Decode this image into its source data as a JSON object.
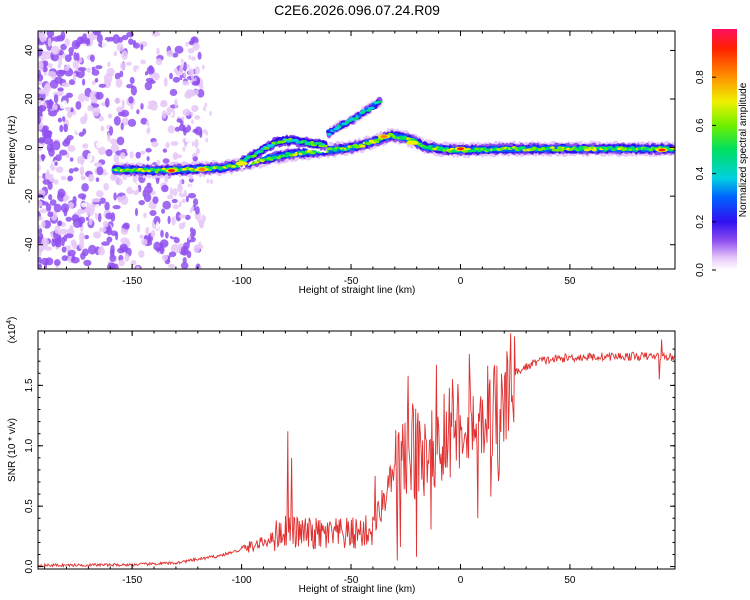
{
  "title": "C2E6.2026.096.07.24.R09",
  "chart_data": [
    {
      "type": "heatmap",
      "name": "spectrogram",
      "xlabel": "Height of straight line (km)",
      "ylabel": "Frequency (Hz)",
      "xlim": [
        -193,
        98
      ],
      "ylim": [
        -50,
        48
      ],
      "xticks": [
        -150,
        -100,
        -50,
        0,
        50
      ],
      "yticks": [
        -40,
        -20,
        0,
        20,
        40
      ],
      "colorbar": {
        "label": "Normalized spectral amplitude",
        "range": [
          0,
          1
        ],
        "ticks": [
          "0.0",
          "0.2",
          "0.4",
          "0.6",
          "0.8"
        ],
        "tick_values": [
          0,
          0.2,
          0.4,
          0.6,
          0.8
        ]
      },
      "ridges": [
        {
          "name": "main-carrier",
          "points": [
            [
              -158,
              -9
            ],
            [
              -140,
              -9.5
            ],
            [
              -125,
              -9
            ],
            [
              -110,
              -8.5
            ],
            [
              -100,
              -7
            ],
            [
              -90,
              -5
            ],
            [
              -80,
              -3
            ],
            [
              -70,
              -2
            ],
            [
              -60,
              -1
            ],
            [
              -50,
              0
            ],
            [
              -45,
              1
            ],
            [
              -38,
              3
            ],
            [
              -32,
              5
            ],
            [
              -25,
              4
            ],
            [
              -15,
              0
            ],
            [
              -5,
              -1
            ],
            [
              5,
              -1
            ],
            [
              20,
              -0.5
            ],
            [
              40,
              -0.5
            ],
            [
              60,
              -0.5
            ],
            [
              80,
              -0.5
            ],
            [
              97,
              -0.5
            ]
          ],
          "amplitude": 0.5
        },
        {
          "name": "upper-branch",
          "points": [
            [
              -100,
              -6
            ],
            [
              -92,
              -2
            ],
            [
              -85,
              2
            ],
            [
              -78,
              3
            ],
            [
              -70,
              2
            ],
            [
              -62,
              1
            ]
          ],
          "amplitude": 0.4
        },
        {
          "name": "rising-branch",
          "points": [
            [
              -60,
              6
            ],
            [
              -55,
              9
            ],
            [
              -50,
              11
            ],
            [
              -45,
              14
            ],
            [
              -40,
              17
            ],
            [
              -37,
              19
            ]
          ],
          "amplitude": 0.3
        }
      ],
      "peaks": [
        [
          -132,
          -9.5,
          0.95
        ],
        [
          -118,
          -9,
          0.85
        ],
        [
          -100,
          -6.5,
          0.8
        ],
        [
          -35,
          4.5,
          0.85
        ],
        [
          -22,
          2,
          0.8
        ],
        [
          0,
          -0.5,
          0.95
        ],
        [
          92,
          -1,
          0.95
        ]
      ]
    },
    {
      "type": "line",
      "name": "snr",
      "xlabel": "Height of straight line (km)",
      "ylabel": "SNR (10 * v/v)",
      "scale_label": "(x10",
      "scale_exponent": "4",
      "xlim": [
        -193,
        98
      ],
      "ylim": [
        -0.02,
        1.95
      ],
      "xticks": [
        -150,
        -100,
        -50,
        0,
        50
      ],
      "yticks": [
        0,
        0.5,
        1.0,
        1.5
      ],
      "ytick_labels": [
        "0.0",
        "0.5",
        "1.0",
        "1.5"
      ],
      "series_color": "#e03030",
      "envelope": [
        [
          -193,
          0.01
        ],
        [
          -150,
          0.015
        ],
        [
          -130,
          0.03
        ],
        [
          -120,
          0.06
        ],
        [
          -110,
          0.09
        ],
        [
          -100,
          0.14
        ],
        [
          -90,
          0.2
        ],
        [
          -80,
          0.3
        ],
        [
          -75,
          0.28
        ],
        [
          -70,
          0.27
        ],
        [
          -60,
          0.26
        ],
        [
          -50,
          0.27
        ],
        [
          -40,
          0.3
        ],
        [
          -30,
          0.8
        ],
        [
          -20,
          0.95
        ],
        [
          -10,
          1.05
        ],
        [
          0,
          1.2
        ],
        [
          10,
          1.28
        ],
        [
          20,
          1.4
        ],
        [
          25,
          1.6
        ],
        [
          35,
          1.7
        ],
        [
          50,
          1.73
        ],
        [
          70,
          1.74
        ],
        [
          90,
          1.74
        ],
        [
          98,
          1.73
        ]
      ],
      "spikes": [
        [
          -79,
          1.12
        ],
        [
          -77,
          0.9
        ],
        [
          -39,
          0.75
        ],
        [
          -24,
          1.58
        ],
        [
          -22,
          1.35
        ],
        [
          -11,
          1.67
        ],
        [
          -5,
          1.48
        ],
        [
          4,
          1.76
        ],
        [
          13,
          1.5
        ],
        [
          8,
          0.4
        ],
        [
          14,
          0.58
        ],
        [
          -29,
          0.05
        ],
        [
          -20,
          0.08
        ],
        [
          92,
          1.88
        ],
        [
          91,
          1.55
        ]
      ]
    }
  ]
}
